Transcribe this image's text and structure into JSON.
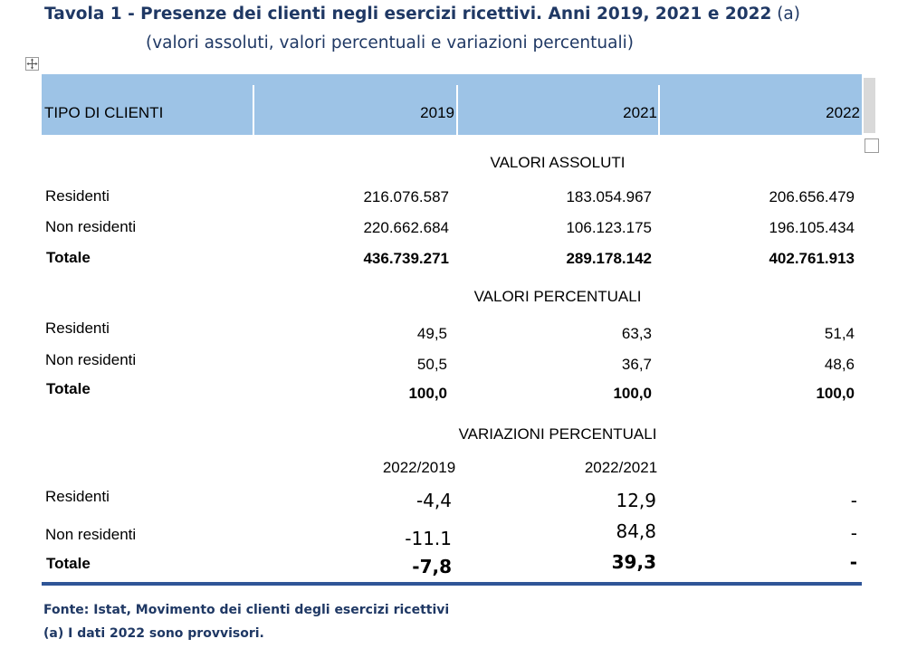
{
  "title": {
    "main": "Tavola 1 - Presenze dei clienti negli esercizi ricettivi. Anni 2019, 2021 e 2022",
    "note": "(a)",
    "subtitle": "(valori assoluti, valori percentuali e variazioni percentuali)"
  },
  "header": {
    "col_tipo": "TIPO DI CLIENTI",
    "col_2019": "2019",
    "col_2021": "2021",
    "col_2022": "2022"
  },
  "sections": {
    "absolute": "VALORI ASSOLUTI",
    "percent": "VALORI PERCENTUALI",
    "variation": "VARIAZIONI PERCENTUALI"
  },
  "variation_headers": {
    "col_a": "2022/2019",
    "col_b": "2022/2021"
  },
  "absolute_rows": [
    {
      "label": "Residenti",
      "v2019": "216.076.587",
      "v2021": "183.054.967",
      "v2022": "206.656.479"
    },
    {
      "label": "Non residenti",
      "v2019": "220.662.684",
      "v2021": "106.123.175",
      "v2022": "196.105.434"
    },
    {
      "label": "Totale",
      "v2019": "436.739.271",
      "v2021": "289.178.142",
      "v2022": "402.761.913"
    }
  ],
  "percent_rows": [
    {
      "label": "Residenti",
      "v2019": "49,5",
      "v2021": "63,3",
      "v2022": "51,4"
    },
    {
      "label": "Non residenti",
      "v2019": "50,5",
      "v2021": "36,7",
      "v2022": "48,6"
    },
    {
      "label": "Totale",
      "v2019": "100,0",
      "v2021": "100,0",
      "v2022": "100,0"
    }
  ],
  "variation_rows": [
    {
      "label": "Residenti",
      "a": "-4,4",
      "b": "12,9",
      "c": "-"
    },
    {
      "label": "Non residenti",
      "a": "-11.1",
      "b": "84,8",
      "c": "-"
    },
    {
      "label": "Totale",
      "a": "-7,8",
      "b": "39,3",
      "c": "-"
    }
  ],
  "footnotes": {
    "source": "Fonte: Istat, Movimento dei clienti degli esercizi ricettivi",
    "note_a": "(a) I dati 2022 sono provvisori."
  },
  "colors": {
    "header_fill": "#9dc3e6",
    "title_text": "#1f3864",
    "rule": "#2f5597"
  }
}
